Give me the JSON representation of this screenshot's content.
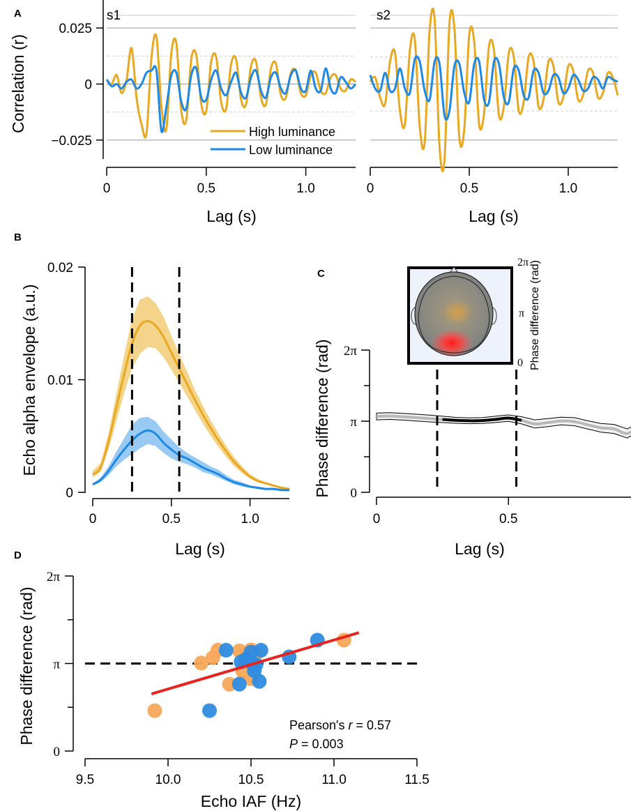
{
  "colors": {
    "high": "#E8A820",
    "low": "#1E88E5",
    "high_fill": "#F3CF7E",
    "low_fill": "#8EC4F2",
    "fit": "#E8231E",
    "scatter_high": "#F7A85A",
    "scatter_low": "#2E8BE0"
  },
  "chart_data": [
    {
      "id": "A-s1",
      "type": "line",
      "panel_label": "A",
      "title": "s1",
      "xlabel": "Lag (s)",
      "ylabel": "Correlation (r)",
      "xlim": [
        0,
        1.25
      ],
      "ylim": [
        -0.035,
        0.035
      ],
      "xticks": [
        0,
        0.5,
        1.0
      ],
      "xtick_labels": [
        "0",
        "0.5",
        "1.0"
      ],
      "yticks": [
        0.025,
        0,
        -0.025
      ],
      "ytick_labels": [
        "0.025",
        "0",
        "−0.025"
      ],
      "reference_lines": [
        0.025,
        0,
        -0.025
      ],
      "significance_bounds": [
        0.0125,
        -0.0125
      ],
      "legend": {
        "position": "bottom-right",
        "entries": [
          "High luminance",
          "Low luminance"
        ]
      },
      "series": [
        {
          "name": "High luminance",
          "x": [
            0,
            0.025,
            0.05,
            0.075,
            0.1,
            0.125,
            0.15,
            0.175,
            0.2,
            0.225,
            0.25,
            0.275,
            0.3,
            0.325,
            0.35,
            0.375,
            0.4,
            0.425,
            0.45,
            0.475,
            0.5,
            0.525,
            0.55,
            0.575,
            0.6,
            0.625,
            0.65,
            0.675,
            0.7,
            0.725,
            0.75,
            0.775,
            0.8,
            0.825,
            0.85,
            0.875,
            0.9,
            0.925,
            0.95,
            0.975,
            1.0,
            1.025,
            1.05,
            1.075,
            1.1,
            1.125,
            1.15,
            1.175,
            1.2,
            1.225,
            1.25
          ],
          "y": [
            0.002,
            0.0,
            0.004,
            -0.004,
            0.002,
            0.016,
            -0.006,
            -0.018,
            -0.022,
            0.012,
            0.021,
            -0.01,
            -0.02,
            0.014,
            0.018,
            -0.012,
            -0.016,
            0.011,
            0.013,
            -0.009,
            -0.012,
            0.01,
            0.012,
            -0.008,
            -0.011,
            0.009,
            0.011,
            -0.007,
            -0.009,
            0.008,
            0.01,
            -0.006,
            -0.009,
            0.007,
            0.009,
            -0.005,
            -0.006,
            0.005,
            0.006,
            -0.004,
            -0.005,
            0.004,
            0.005,
            -0.003,
            -0.004,
            0.003,
            0.004,
            -0.002,
            -0.003,
            0.002,
            0.001
          ]
        },
        {
          "name": "Low luminance",
          "x": [
            0,
            0.025,
            0.05,
            0.075,
            0.1,
            0.125,
            0.15,
            0.175,
            0.2,
            0.225,
            0.25,
            0.275,
            0.3,
            0.325,
            0.35,
            0.375,
            0.4,
            0.425,
            0.45,
            0.475,
            0.5,
            0.525,
            0.55,
            0.575,
            0.6,
            0.625,
            0.65,
            0.675,
            0.7,
            0.725,
            0.75,
            0.775,
            0.8,
            0.825,
            0.85,
            0.875,
            0.9,
            0.925,
            0.95,
            0.975,
            1.0,
            1.025,
            1.05,
            1.075,
            1.1,
            1.125,
            1.15,
            1.175,
            1.2,
            1.225,
            1.25
          ],
          "y": [
            0.002,
            -0.001,
            0.0,
            -0.002,
            0.001,
            0.002,
            -0.002,
            0.0,
            0.005,
            0.006,
            0.006,
            -0.021,
            -0.01,
            0.004,
            0.005,
            -0.008,
            -0.011,
            0.004,
            0.007,
            -0.006,
            -0.007,
            0.002,
            0.006,
            -0.002,
            -0.005,
            0.001,
            0.005,
            -0.004,
            -0.006,
            0.003,
            0.006,
            -0.003,
            -0.006,
            0.003,
            0.005,
            -0.002,
            -0.004,
            0.004,
            0.006,
            -0.002,
            -0.003,
            0.006,
            -0.002,
            -0.003,
            0.007,
            -0.002,
            -0.004,
            0.003,
            0.001,
            -0.002,
            0.0
          ]
        }
      ]
    },
    {
      "id": "A-s2",
      "type": "line",
      "title": "s2",
      "xlabel": "Lag (s)",
      "xlim": [
        0,
        1.25
      ],
      "ylim": [
        -0.035,
        0.035
      ],
      "xticks": [
        0,
        0.5,
        1.0
      ],
      "xtick_labels": [
        "0",
        "0.5",
        "1.0"
      ],
      "reference_lines": [
        0.025,
        0,
        -0.025
      ],
      "significance_bounds": [
        0.012,
        -0.012
      ],
      "series": [
        {
          "name": "High luminance",
          "x": [
            0,
            0.025,
            0.05,
            0.075,
            0.1,
            0.125,
            0.15,
            0.175,
            0.2,
            0.225,
            0.25,
            0.275,
            0.3,
            0.325,
            0.35,
            0.375,
            0.4,
            0.425,
            0.45,
            0.475,
            0.5,
            0.525,
            0.55,
            0.575,
            0.6,
            0.625,
            0.65,
            0.675,
            0.7,
            0.725,
            0.75,
            0.775,
            0.8,
            0.825,
            0.85,
            0.875,
            0.9,
            0.925,
            0.95,
            0.975,
            1.0,
            1.025,
            1.05,
            1.075,
            1.1,
            1.125,
            1.15,
            1.175,
            1.2,
            1.225,
            1.25
          ],
          "y": [
            0.001,
            0.003,
            -0.006,
            -0.009,
            0.01,
            0.014,
            -0.012,
            -0.018,
            0.015,
            0.02,
            -0.019,
            -0.026,
            0.024,
            0.029,
            -0.028,
            -0.034,
            0.027,
            0.025,
            -0.024,
            -0.02,
            0.022,
            0.019,
            -0.018,
            -0.013,
            0.017,
            0.015,
            -0.014,
            -0.01,
            0.014,
            0.012,
            -0.012,
            -0.008,
            0.012,
            0.01,
            -0.01,
            -0.007,
            0.01,
            0.008,
            -0.008,
            -0.006,
            0.008,
            0.006,
            -0.007,
            -0.005,
            0.006,
            0.005,
            -0.006,
            -0.004,
            0.005,
            0.003,
            -0.005
          ]
        },
        {
          "name": "Low luminance",
          "x": [
            0,
            0.025,
            0.05,
            0.075,
            0.1,
            0.125,
            0.15,
            0.175,
            0.2,
            0.225,
            0.25,
            0.275,
            0.3,
            0.325,
            0.35,
            0.375,
            0.4,
            0.425,
            0.45,
            0.475,
            0.5,
            0.525,
            0.55,
            0.575,
            0.6,
            0.625,
            0.65,
            0.675,
            0.7,
            0.725,
            0.75,
            0.775,
            0.8,
            0.825,
            0.85,
            0.875,
            0.9,
            0.925,
            0.95,
            0.975,
            1.0,
            1.025,
            1.05,
            1.075,
            1.1,
            1.125,
            1.15,
            1.175,
            1.2,
            1.225,
            1.25
          ],
          "y": [
            0.004,
            -0.002,
            -0.003,
            0.005,
            -0.003,
            -0.002,
            0.007,
            -0.002,
            -0.004,
            0.011,
            0.01,
            -0.003,
            -0.007,
            0.01,
            0.009,
            -0.014,
            -0.012,
            0.008,
            0.009,
            -0.004,
            -0.008,
            0.009,
            0.01,
            -0.007,
            -0.008,
            0.01,
            0.009,
            -0.006,
            -0.008,
            0.007,
            0.006,
            -0.005,
            -0.006,
            0.006,
            0.005,
            -0.004,
            -0.003,
            0.004,
            0.003,
            -0.004,
            -0.002,
            0.004,
            0.002,
            -0.003,
            -0.002,
            0.003,
            0.002,
            -0.002,
            0.003,
            0.002,
            0.001
          ]
        }
      ]
    },
    {
      "id": "B",
      "type": "area",
      "panel_label": "B",
      "xlabel": "Lag (s)",
      "ylabel": "Echo alpha envelope (a.u.)",
      "xlim": [
        0,
        1.25
      ],
      "ylim": [
        0,
        0.02
      ],
      "xticks": [
        0,
        0.5,
        1.0
      ],
      "xtick_labels": [
        "0",
        "0.5",
        "1.0"
      ],
      "yticks": [
        0,
        0.01,
        0.02
      ],
      "ytick_labels": [
        "0",
        "0.01",
        "0.02"
      ],
      "vlines": [
        0.25,
        0.55
      ],
      "series": [
        {
          "name": "High luminance",
          "x": [
            0,
            0.05,
            0.1,
            0.15,
            0.2,
            0.25,
            0.3,
            0.35,
            0.4,
            0.45,
            0.5,
            0.55,
            0.6,
            0.65,
            0.7,
            0.75,
            0.8,
            0.85,
            0.9,
            0.95,
            1.0,
            1.05,
            1.1,
            1.15,
            1.2,
            1.25
          ],
          "values": [
            0.0016,
            0.0022,
            0.0045,
            0.0075,
            0.0105,
            0.0132,
            0.0148,
            0.0152,
            0.0148,
            0.0138,
            0.0124,
            0.011,
            0.0096,
            0.0082,
            0.0069,
            0.0057,
            0.0046,
            0.0036,
            0.0027,
            0.002,
            0.0014,
            0.001,
            0.0008,
            0.0006,
            0.0004,
            0.0003
          ],
          "lower": [
            0.0013,
            0.0018,
            0.0038,
            0.0063,
            0.0088,
            0.011,
            0.0123,
            0.0129,
            0.0128,
            0.012,
            0.0109,
            0.0097,
            0.0085,
            0.0073,
            0.0061,
            0.005,
            0.004,
            0.0031,
            0.0023,
            0.0017,
            0.0012,
            0.0009,
            0.0007,
            0.0005,
            0.0004,
            0.0003
          ],
          "upper": [
            0.0019,
            0.0026,
            0.0052,
            0.0087,
            0.0122,
            0.0154,
            0.0171,
            0.0174,
            0.0168,
            0.0156,
            0.0139,
            0.0123,
            0.0107,
            0.0091,
            0.0077,
            0.0064,
            0.0052,
            0.0041,
            0.0031,
            0.0023,
            0.0016,
            0.0012,
            0.0009,
            0.0007,
            0.0005,
            0.0004
          ]
        },
        {
          "name": "Low luminance",
          "x": [
            0,
            0.05,
            0.1,
            0.15,
            0.2,
            0.25,
            0.3,
            0.35,
            0.4,
            0.45,
            0.5,
            0.55,
            0.6,
            0.65,
            0.7,
            0.75,
            0.8,
            0.85,
            0.9,
            0.95,
            1.0,
            1.05,
            1.1,
            1.15,
            1.2,
            1.25
          ],
          "values": [
            0.0007,
            0.0011,
            0.0019,
            0.0029,
            0.0038,
            0.0046,
            0.0052,
            0.0055,
            0.0052,
            0.0044,
            0.0038,
            0.0033,
            0.003,
            0.0026,
            0.0022,
            0.0019,
            0.0016,
            0.0012,
            0.0009,
            0.0007,
            0.0005,
            0.0004,
            0.0003,
            0.0003,
            0.0002,
            0.0002
          ],
          "lower": [
            0.0006,
            0.0009,
            0.0015,
            0.0023,
            0.0029,
            0.0034,
            0.0039,
            0.0043,
            0.0041,
            0.0035,
            0.003,
            0.0027,
            0.0025,
            0.0022,
            0.0018,
            0.0016,
            0.0013,
            0.001,
            0.0007,
            0.0005,
            0.0004,
            0.0003,
            0.0002,
            0.0002,
            0.0002,
            0.0001
          ],
          "upper": [
            0.0008,
            0.0013,
            0.0023,
            0.0036,
            0.0048,
            0.006,
            0.0066,
            0.0067,
            0.0063,
            0.0054,
            0.0047,
            0.004,
            0.0035,
            0.0031,
            0.0027,
            0.0023,
            0.002,
            0.0015,
            0.0011,
            0.0009,
            0.0006,
            0.0005,
            0.0004,
            0.0004,
            0.0003,
            0.0003
          ]
        }
      ]
    },
    {
      "id": "C",
      "type": "line",
      "panel_label": "C",
      "xlabel": "Lag (s)",
      "ylabel": "Phase difference (rad)",
      "xlim": [
        0,
        1.25
      ],
      "ylim": [
        0,
        6.2832
      ],
      "xticks": [
        0,
        0.5,
        1.0
      ],
      "xtick_labels": [
        "0",
        "0.5",
        "1.0"
      ],
      "yticks": [
        0,
        3.1416,
        6.2832
      ],
      "ytick_labels": [
        "0",
        "π",
        "2π"
      ],
      "vlines": [
        0.23,
        0.53
      ],
      "highlight_range": [
        0.25,
        0.55
      ],
      "series": [
        {
          "name": "Phase difference",
          "x": [
            0,
            0.05,
            0.1,
            0.15,
            0.2,
            0.25,
            0.3,
            0.35,
            0.4,
            0.45,
            0.5,
            0.55,
            0.6,
            0.65,
            0.7,
            0.75,
            0.8,
            0.85,
            0.9,
            0.95,
            1.0,
            1.05,
            1.1,
            1.15,
            1.2,
            1.25
          ],
          "values": [
            3.35,
            3.37,
            3.34,
            3.3,
            3.26,
            3.22,
            3.18,
            3.16,
            3.17,
            3.22,
            3.28,
            3.18,
            3.02,
            3.08,
            3.15,
            3.12,
            2.98,
            2.85,
            2.8,
            2.6,
            2.9,
            3.0,
            3.2,
            3.55,
            3.4,
            3.35
          ],
          "lower": [
            3.2,
            3.22,
            3.19,
            3.15,
            3.11,
            3.08,
            3.05,
            3.03,
            3.04,
            3.08,
            3.14,
            3.02,
            2.84,
            2.9,
            2.98,
            2.94,
            2.8,
            2.66,
            2.6,
            2.4,
            2.72,
            2.82,
            3.04,
            3.4,
            3.25,
            3.2
          ],
          "upper": [
            3.5,
            3.52,
            3.49,
            3.45,
            3.41,
            3.36,
            3.31,
            3.29,
            3.3,
            3.36,
            3.42,
            3.34,
            3.2,
            3.26,
            3.32,
            3.3,
            3.16,
            3.04,
            3.0,
            2.8,
            3.08,
            3.18,
            3.36,
            3.7,
            3.55,
            3.5
          ]
        }
      ],
      "inset": {
        "type": "heatmap",
        "colorbar_label": "Phase difference (rad)",
        "colorbar_ticks": [
          "2π",
          "π",
          "0"
        ]
      }
    },
    {
      "id": "D",
      "type": "scatter",
      "panel_label": "D",
      "xlabel": "Echo IAF (Hz)",
      "ylabel": "Phase difference (rad)",
      "xlim": [
        9.5,
        11.5
      ],
      "ylim": [
        0,
        6.2832
      ],
      "xticks": [
        9.5,
        10.0,
        10.5,
        11.0,
        11.5
      ],
      "xtick_labels": [
        "9.5",
        "10.0",
        "10.5",
        "11.0",
        "11.5"
      ],
      "yticks": [
        0,
        3.1416,
        6.2832
      ],
      "ytick_labels": [
        "0",
        "π",
        "2π"
      ],
      "reference_line_y": 3.1416,
      "fit_line": {
        "x": [
          9.9,
          11.15
        ],
        "y": [
          2.05,
          4.25
        ]
      },
      "stats": {
        "r_prefix": "Pearson's ",
        "r_symbol": "r",
        "r_value": " = 0.57",
        "p_symbol": "P",
        "p_value": " = 0.003"
      },
      "series": [
        {
          "name": "High luminance",
          "x": [
            9.92,
            10.2,
            10.27,
            10.3,
            10.37,
            10.43,
            10.45,
            10.47,
            10.48,
            10.5,
            10.5,
            10.53,
            11.06
          ],
          "y": [
            1.45,
            3.16,
            3.35,
            3.62,
            2.4,
            3.6,
            2.87,
            3.28,
            3.55,
            3.63,
            2.6,
            3.48,
            3.98
          ]
        },
        {
          "name": "Low luminance",
          "x": [
            10.25,
            10.35,
            10.43,
            10.44,
            10.47,
            10.5,
            10.5,
            10.52,
            10.53,
            10.55,
            10.56,
            10.73,
            10.9
          ],
          "y": [
            1.45,
            3.62,
            2.4,
            3.2,
            3.3,
            3.2,
            3.55,
            2.88,
            3.1,
            2.5,
            3.62,
            3.38,
            3.98
          ]
        }
      ]
    }
  ]
}
